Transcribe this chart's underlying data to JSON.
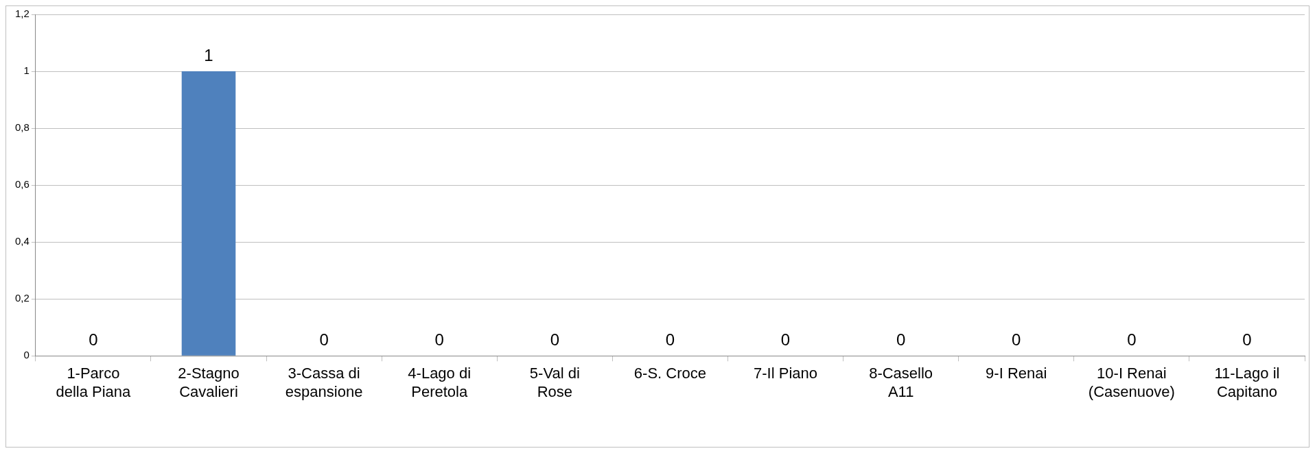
{
  "chart_data": {
    "type": "bar",
    "categories": [
      "1-Parco della Piana",
      "2-Stagno Cavalieri",
      "3-Cassa di espansione",
      "4-Lago di Peretola",
      "5-Val di Rose",
      "6-S. Croce",
      "7-Il Piano",
      "8-Casello A11",
      "9-I Renai",
      "10-I Renai (Casenuove)",
      "11-Lago il Capitano"
    ],
    "values": [
      0,
      1,
      0,
      0,
      0,
      0,
      0,
      0,
      0,
      0,
      0
    ],
    "color": "#4f81bd",
    "ylim": [
      0,
      1.2
    ],
    "yticks": [
      0,
      {
        "value": 0.2,
        "label": "0,2"
      },
      {
        "value": 0.4,
        "label": "0,4"
      },
      {
        "value": 0.6,
        "label": "0,6"
      },
      {
        "value": 0.8,
        "label": "0,8"
      },
      1,
      {
        "value": 1.2,
        "label": "1,2"
      }
    ],
    "grid": "y",
    "legend": false,
    "data_labels": true
  }
}
